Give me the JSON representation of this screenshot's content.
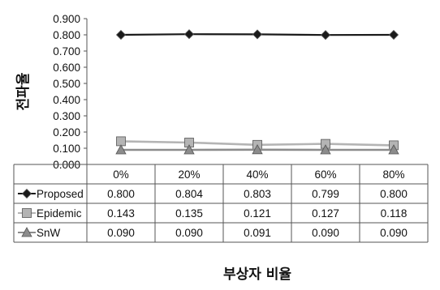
{
  "chart_data": {
    "type": "line",
    "title": "",
    "xlabel": "부상자 비율",
    "ylabel": "전파율",
    "categories": [
      "0%",
      "20%",
      "40%",
      "60%",
      "80%"
    ],
    "ylim": [
      0,
      0.9
    ],
    "yticks": [
      "0.000",
      "0.100",
      "0.200",
      "0.300",
      "0.400",
      "0.500",
      "0.600",
      "0.700",
      "0.800",
      "0.900"
    ],
    "grid": false,
    "legend": "data-table",
    "series": [
      {
        "name": "Proposed",
        "values": [
          0.8,
          0.804,
          0.803,
          0.799,
          0.8
        ],
        "labels": [
          "0.800",
          "0.804",
          "0.803",
          "0.799",
          "0.800"
        ],
        "color": "#1a1a1a",
        "marker": "diamond"
      },
      {
        "name": "Epidemic",
        "values": [
          0.143,
          0.135,
          0.121,
          0.127,
          0.118
        ],
        "labels": [
          "0.143",
          "0.135",
          "0.121",
          "0.127",
          "0.118"
        ],
        "color": "#b4b4b4",
        "marker": "square"
      },
      {
        "name": "SnW",
        "values": [
          0.09,
          0.09,
          0.091,
          0.09,
          0.09
        ],
        "labels": [
          "0.090",
          "0.090",
          "0.091",
          "0.090",
          "0.090"
        ],
        "color": "#8c8c8c",
        "marker": "triangle"
      }
    ]
  }
}
